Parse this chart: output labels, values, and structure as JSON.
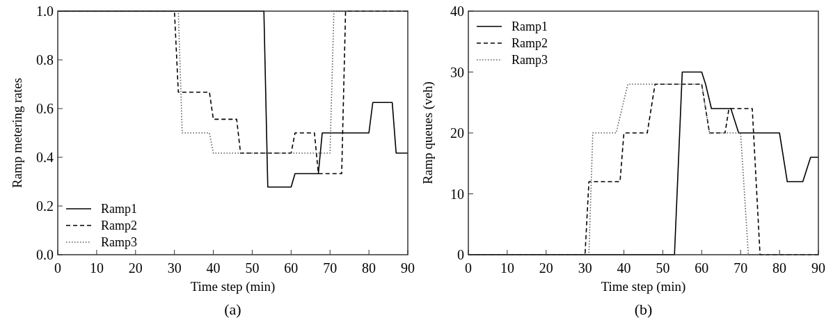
{
  "chart_data": [
    {
      "type": "line",
      "xlabel": "Time step (min)",
      "ylabel": "Ramp metering rates",
      "annotations": [
        "(a)"
      ],
      "xlim": [
        0,
        90
      ],
      "xticks": [
        0,
        10,
        20,
        30,
        40,
        50,
        60,
        70,
        80,
        90
      ],
      "ylim": [
        0,
        1
      ],
      "yticks": [
        {
          "value": 0,
          "label": "0.0"
        },
        0.2,
        0.4,
        0.6,
        0.8,
        {
          "value": 1,
          "label": "1.0"
        }
      ],
      "legend": "bottom left",
      "grid": false,
      "series": [
        {
          "name": "Ramp1",
          "color": "#000000",
          "line_style": "solid",
          "x": [
            0,
            53,
            54,
            60,
            61,
            67,
            68,
            80,
            81,
            86,
            87,
            90
          ],
          "values": [
            1,
            1,
            0.278,
            0.278,
            0.333,
            0.333,
            0.5,
            0.5,
            0.625,
            0.625,
            0.417,
            0.417
          ]
        },
        {
          "name": "Ramp2",
          "color": "#000000",
          "line_style": "dashed",
          "x": [
            0,
            30,
            31,
            39,
            40,
            46,
            47,
            60,
            61,
            66,
            67,
            73,
            74,
            90
          ],
          "values": [
            1,
            1,
            0.667,
            0.667,
            0.556,
            0.556,
            0.417,
            0.417,
            0.5,
            0.5,
            0.333,
            0.333,
            1,
            1
          ]
        },
        {
          "name": "Ramp3",
          "color": "#555555",
          "line_style": "dotted",
          "x": [
            0,
            31,
            32,
            39,
            40,
            70,
            71,
            90
          ],
          "values": [
            1,
            1,
            0.5,
            0.5,
            0.417,
            0.417,
            1,
            1
          ]
        }
      ]
    },
    {
      "type": "line",
      "xlabel": "Time step (min)",
      "ylabel": "Ramp queues (veh)",
      "annotations": [
        "(b)"
      ],
      "xlim": [
        0,
        90
      ],
      "xticks": [
        0,
        10,
        20,
        30,
        40,
        50,
        60,
        70,
        80,
        90
      ],
      "ylim": [
        0,
        40
      ],
      "yticks": [
        0,
        10,
        20,
        30,
        40
      ],
      "legend": "top left",
      "grid": false,
      "series": [
        {
          "name": "Ramp1",
          "color": "#000000",
          "line_style": "solid",
          "x": [
            0,
            53,
            55,
            60,
            61,
            62.5,
            67.5,
            69.5,
            80,
            82,
            86,
            88,
            90
          ],
          "values": [
            0,
            0,
            30,
            30,
            28,
            24,
            24,
            20,
            20,
            12,
            12,
            16,
            16
          ]
        },
        {
          "name": "Ramp2",
          "color": "#000000",
          "line_style": "dashed",
          "x": [
            0,
            30,
            31,
            39,
            40,
            46,
            48,
            60,
            62,
            66,
            67,
            73,
            75,
            90
          ],
          "values": [
            0,
            0,
            12,
            12,
            20,
            20,
            28,
            28,
            20,
            20,
            24,
            24,
            0,
            0
          ]
        },
        {
          "name": "Ramp3",
          "color": "#555555",
          "line_style": "dotted",
          "x": [
            0,
            31,
            32,
            38,
            41,
            60,
            62,
            70,
            72,
            90
          ],
          "values": [
            0,
            0,
            20,
            20,
            28,
            28,
            20,
            20,
            0,
            0
          ]
        }
      ]
    }
  ]
}
